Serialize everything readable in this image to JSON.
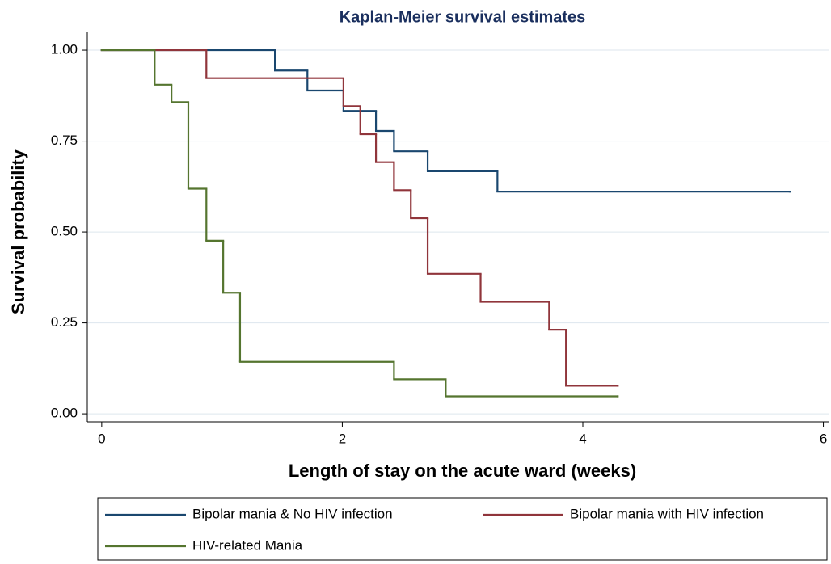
{
  "chart_data": {
    "type": "step",
    "title": "Kaplan-Meier survival estimates",
    "xlabel": "Length of stay on the acute ward (weeks)",
    "ylabel": "Survival probability",
    "xlim": [
      -0.12,
      6.05
    ],
    "ylim": [
      -0.022,
      1.049
    ],
    "xticks": [
      0,
      2,
      4,
      6
    ],
    "yticks": [
      {
        "value": 0,
        "label": "0.00"
      },
      {
        "value": 0.25,
        "label": "0.25"
      },
      {
        "value": 0.5,
        "label": "0.50"
      },
      {
        "value": 0.75,
        "label": "0.75"
      },
      {
        "value": 1,
        "label": "1.00"
      }
    ],
    "grid": true,
    "legend": "bottom",
    "series": [
      {
        "name": "Bipolar mania & No HIV infection",
        "color": "#1a476f",
        "x": [
          0,
          1.44,
          1.71,
          2.01,
          2.28,
          2.43,
          2.71,
          3.29,
          5.72
        ],
        "values": [
          1,
          0.944,
          0.889,
          0.833,
          0.778,
          0.722,
          0.667,
          0.611,
          0.611
        ]
      },
      {
        "name": "Bipolar mania with HIV infection",
        "color": "#90353b",
        "x": [
          0,
          0.87,
          2.01,
          2.15,
          2.28,
          2.43,
          2.57,
          2.71,
          3.15,
          3.72,
          3.86,
          4.29
        ],
        "values": [
          1,
          0.923,
          0.846,
          0.769,
          0.692,
          0.615,
          0.538,
          0.385,
          0.308,
          0.231,
          0.077,
          0.077
        ]
      },
      {
        "name": "HIV-related Mania",
        "color": "#55752f",
        "x": [
          0,
          0.44,
          0.58,
          0.72,
          0.87,
          1.01,
          1.15,
          2.43,
          2.86,
          4.29
        ],
        "values": [
          1,
          0.905,
          0.857,
          0.619,
          0.476,
          0.333,
          0.143,
          0.095,
          0.048,
          0.048
        ]
      }
    ]
  }
}
